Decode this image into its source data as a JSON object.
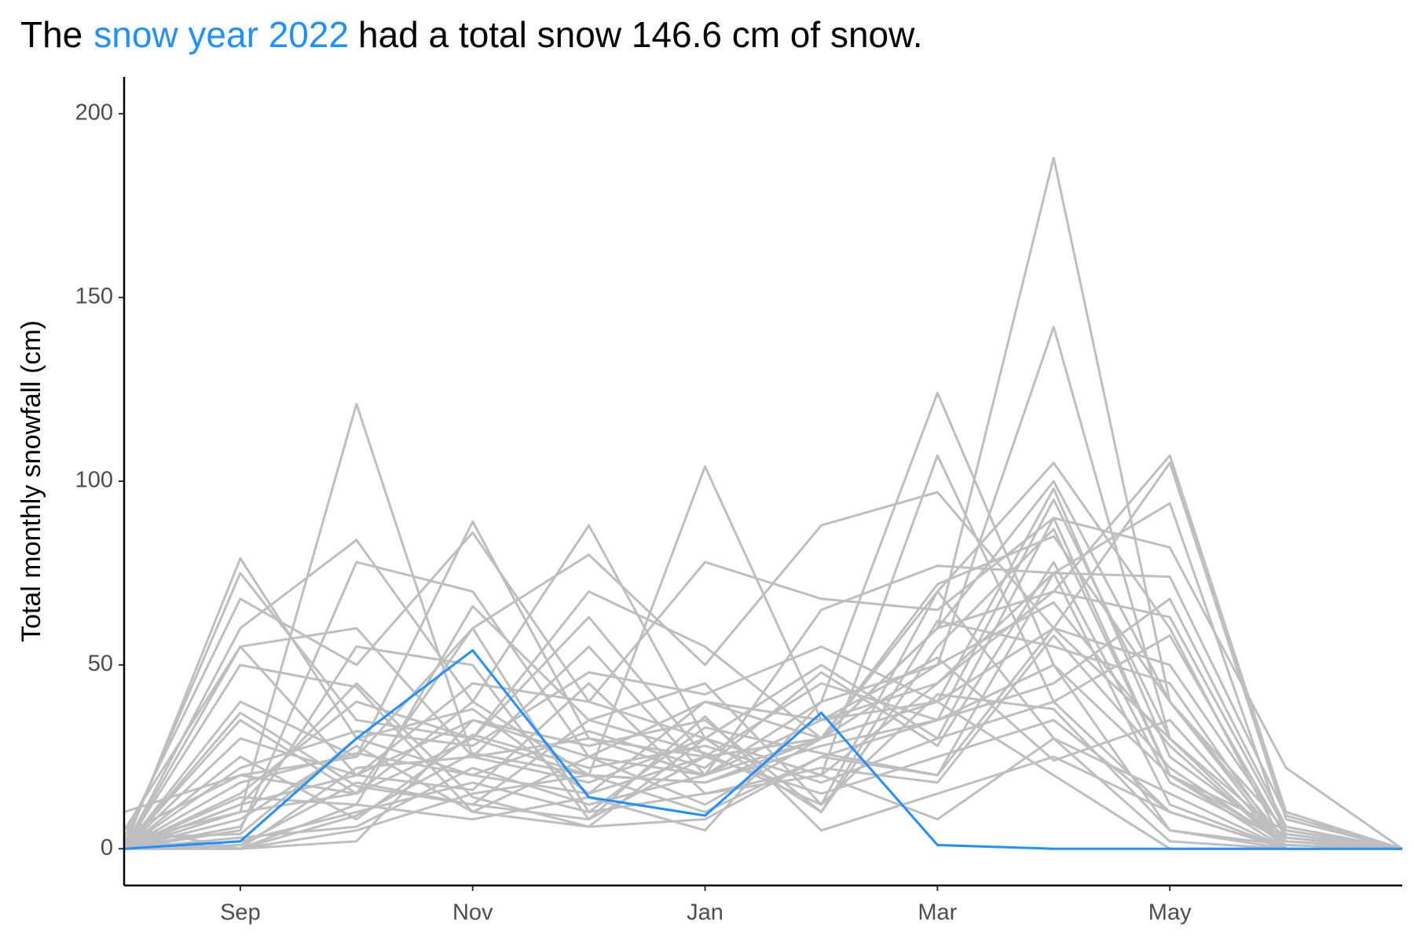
{
  "chart_data": {
    "type": "line",
    "title_before": "The",
    "title_after": "had a total snow 146.6 cm of snow.",
    "y_label": "Total monthly snowfall (cm)",
    "categories": [
      null,
      "Sep",
      null,
      "Nov",
      null,
      "Jan",
      null,
      "Mar",
      null,
      "May",
      null,
      null
    ],
    "ylim": [
      -10,
      210
    ],
    "yticks": [
      0,
      50,
      100,
      150,
      200
    ],
    "series": [
      {
        "color": "#bebebe",
        "values": [
          0,
          79,
          30,
          20,
          15,
          25,
          30,
          60,
          188,
          40,
          5,
          0
        ]
      },
      {
        "color": "#bebebe",
        "values": [
          5,
          55,
          20,
          35,
          25,
          20,
          30,
          50,
          142,
          30,
          3,
          0
        ]
      },
      {
        "color": "#bebebe",
        "values": [
          2,
          10,
          121,
          25,
          30,
          20,
          40,
          124,
          50,
          20,
          2,
          0
        ]
      },
      {
        "color": "#bebebe",
        "values": [
          0,
          15,
          40,
          30,
          20,
          104,
          35,
          40,
          60,
          30,
          0,
          0
        ]
      },
      {
        "color": "#bebebe",
        "values": [
          10,
          20,
          25,
          89,
          30,
          25,
          30,
          60,
          70,
          107,
          10,
          0
        ]
      },
      {
        "color": "#bebebe",
        "values": [
          0,
          60,
          84,
          40,
          88,
          30,
          20,
          107,
          40,
          10,
          0,
          0
        ]
      },
      {
        "color": "#bebebe",
        "values": [
          3,
          68,
          50,
          86,
          40,
          78,
          68,
          65,
          90,
          20,
          5,
          0
        ]
      },
      {
        "color": "#bebebe",
        "values": [
          0,
          40,
          25,
          60,
          80,
          50,
          88,
          97,
          60,
          105,
          8,
          0
        ]
      },
      {
        "color": "#bebebe",
        "values": [
          0,
          5,
          78,
          70,
          25,
          40,
          30,
          70,
          105,
          60,
          0,
          0
        ]
      },
      {
        "color": "#bebebe",
        "values": [
          1,
          75,
          35,
          30,
          70,
          55,
          30,
          40,
          98,
          25,
          2,
          0
        ]
      },
      {
        "color": "#bebebe",
        "values": [
          0,
          55,
          60,
          25,
          55,
          20,
          65,
          77,
          75,
          94,
          3,
          0
        ]
      },
      {
        "color": "#bebebe",
        "values": [
          0,
          30,
          20,
          45,
          40,
          30,
          50,
          30,
          90,
          82,
          22,
          0
        ]
      },
      {
        "color": "#bebebe",
        "values": [
          4,
          20,
          15,
          30,
          63,
          25,
          45,
          35,
          95,
          30,
          0,
          0
        ]
      },
      {
        "color": "#bebebe",
        "values": [
          0,
          2,
          10,
          18,
          10,
          15,
          20,
          45,
          70,
          63,
          5,
          0
        ]
      },
      {
        "color": "#bebebe",
        "values": [
          0,
          8,
          28,
          10,
          25,
          12,
          30,
          60,
          100,
          40,
          0,
          0
        ]
      },
      {
        "color": "#bebebe",
        "values": [
          0,
          12,
          45,
          14,
          6,
          8,
          25,
          35,
          50,
          5,
          1,
          0
        ]
      },
      {
        "color": "#bebebe",
        "values": [
          2,
          0,
          22,
          25,
          18,
          30,
          10,
          55,
          87,
          20,
          0,
          0
        ]
      },
      {
        "color": "#bebebe",
        "values": [
          0,
          35,
          15,
          40,
          20,
          10,
          25,
          20,
          60,
          50,
          4,
          0
        ]
      },
      {
        "color": "#bebebe",
        "values": [
          0,
          14,
          12,
          66,
          35,
          45,
          12,
          70,
          30,
          15,
          0,
          0
        ]
      },
      {
        "color": "#bebebe",
        "values": [
          0,
          3,
          6,
          22,
          12,
          20,
          35,
          45,
          75,
          74,
          9,
          0
        ]
      },
      {
        "color": "#bebebe",
        "values": [
          0,
          1,
          18,
          12,
          8,
          25,
          15,
          25,
          35,
          10,
          0,
          0
        ]
      },
      {
        "color": "#bebebe",
        "values": [
          0,
          22,
          32,
          28,
          48,
          42,
          55,
          40,
          20,
          0,
          0,
          0
        ]
      },
      {
        "color": "#bebebe",
        "values": [
          6,
          0,
          5,
          15,
          20,
          18,
          28,
          35,
          45,
          68,
          6,
          0
        ]
      },
      {
        "color": "#bebebe",
        "values": [
          0,
          50,
          44,
          10,
          6,
          30,
          20,
          8,
          30,
          2,
          0,
          0
        ]
      },
      {
        "color": "#bebebe",
        "values": [
          0,
          0,
          2,
          35,
          28,
          35,
          10,
          62,
          55,
          45,
          0,
          0
        ]
      },
      {
        "color": "#bebebe",
        "values": [
          0,
          18,
          26,
          20,
          32,
          22,
          48,
          28,
          78,
          18,
          2,
          0
        ]
      },
      {
        "color": "#bebebe",
        "values": [
          0,
          6,
          55,
          50,
          8,
          36,
          5,
          15,
          25,
          10,
          0,
          0
        ]
      },
      {
        "color": "#bebebe",
        "values": [
          1,
          0,
          12,
          8,
          14,
          5,
          40,
          50,
          67,
          28,
          0,
          0
        ]
      },
      {
        "color": "#bebebe",
        "values": [
          0,
          25,
          8,
          31,
          22,
          28,
          18,
          30,
          40,
          58,
          3,
          0
        ]
      },
      {
        "color": "#bebebe",
        "values": [
          0,
          12,
          20,
          16,
          45,
          15,
          22,
          18,
          58,
          22,
          1,
          0
        ]
      },
      {
        "color": "#bebebe",
        "values": [
          3,
          4,
          30,
          38,
          15,
          40,
          35,
          52,
          24,
          35,
          0,
          0
        ]
      },
      {
        "color": "#bebebe",
        "values": [
          0,
          0,
          9,
          26,
          20,
          18,
          30,
          72,
          85,
          40,
          2,
          0
        ]
      },
      {
        "color": "#bebebe",
        "values": [
          0,
          37,
          17,
          12,
          35,
          26,
          12,
          42,
          38,
          5,
          0,
          0
        ]
      },
      {
        "color": "#bebebe",
        "values": [
          0,
          10,
          15,
          60,
          10,
          33,
          26,
          20,
          75,
          12,
          0,
          0
        ]
      },
      {
        "name": "snow year 2022",
        "color": "#1e90ff",
        "values": [
          0,
          2,
          30,
          54,
          14,
          9,
          37,
          1,
          0,
          0,
          0,
          0
        ]
      }
    ]
  }
}
